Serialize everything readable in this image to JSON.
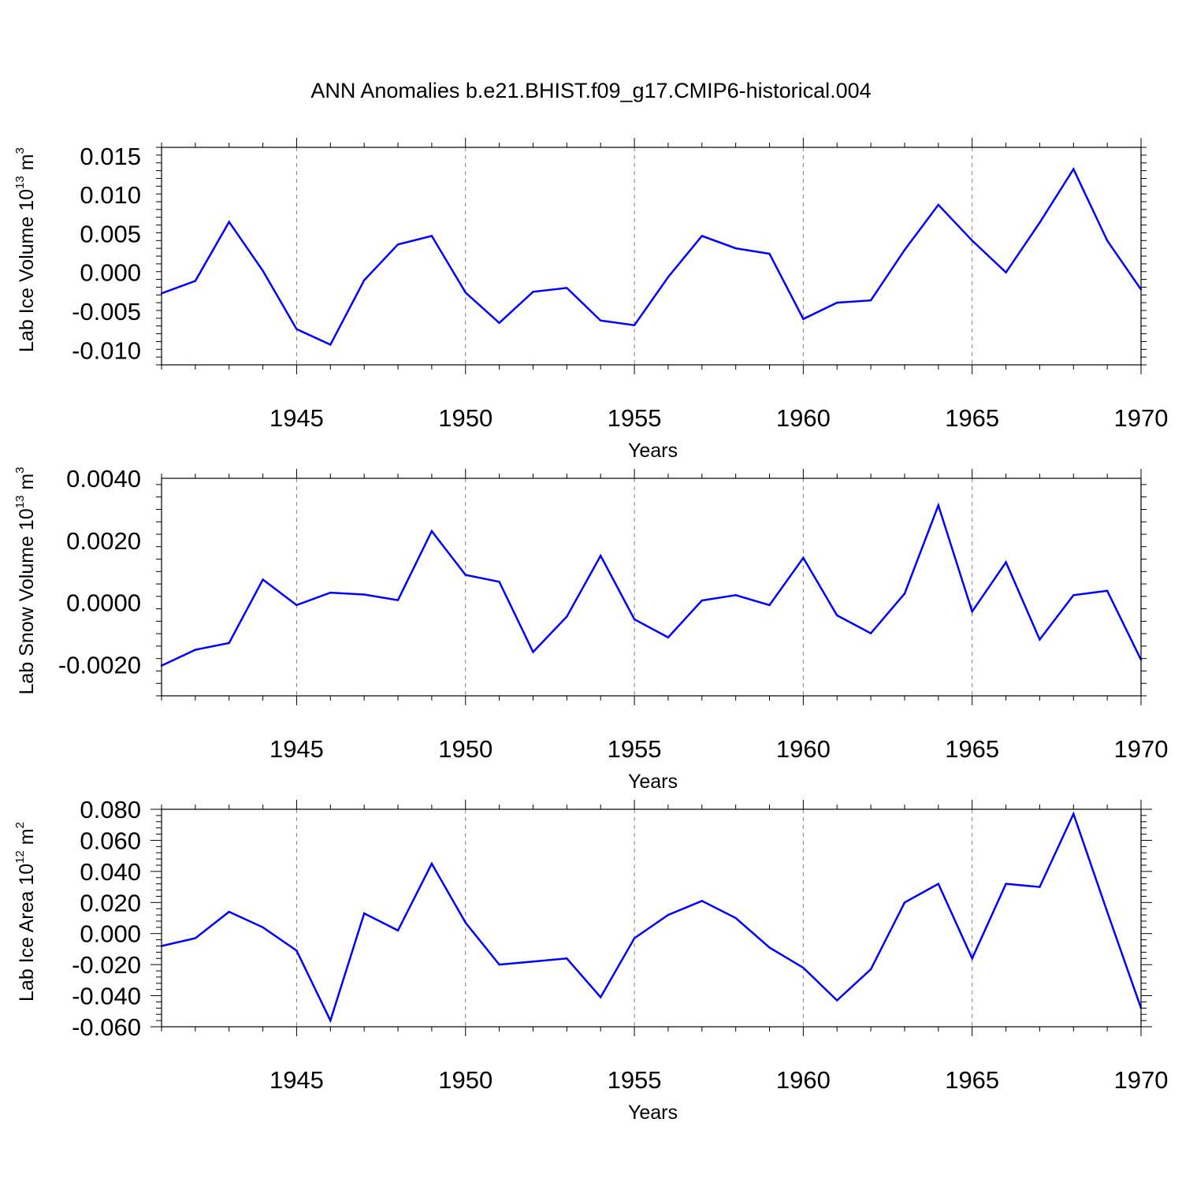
{
  "title": "ANN Anomalies b.e21.BHIST.f09_g17.CMIP6-historical.004",
  "colors": {
    "series": "#0000ff",
    "axis": "#000000",
    "grid": "#808080"
  },
  "chart_data": [
    {
      "type": "line",
      "ylabel_main": "Lab Ice Volume 10",
      "ylabel_exp": "13",
      "ylabel_unit": " m",
      "ylabel_unit_exp": "3",
      "xlabel": "Years",
      "xlim": [
        1941,
        1970
      ],
      "ylim": [
        -0.0119,
        0.0161
      ],
      "xticks": [
        "1945",
        "1950",
        "1955",
        "1960",
        "1965",
        "1970"
      ],
      "yticks": [
        "-0.010",
        "-0.005",
        "0.000",
        "0.005",
        "0.010",
        "0.015"
      ],
      "ytick_values": [
        -0.01,
        -0.005,
        0.0,
        0.005,
        0.01,
        0.015
      ],
      "grid": "vertical dashed at major x ticks",
      "x": [
        1941,
        1942,
        1943,
        1944,
        1945,
        1946,
        1947,
        1948,
        1949,
        1950,
        1951,
        1952,
        1953,
        1954,
        1955,
        1956,
        1957,
        1958,
        1959,
        1960,
        1961,
        1962,
        1963,
        1964,
        1965,
        1966,
        1967,
        1968,
        1969,
        1970
      ],
      "values": [
        -0.0027,
        -0.0011,
        0.0065,
        0.0002,
        -0.0073,
        -0.0093,
        -0.001,
        0.0036,
        0.0047,
        -0.0026,
        -0.0065,
        -0.0025,
        -0.002,
        -0.0062,
        -0.0068,
        -0.0006,
        0.0047,
        0.0031,
        0.0024,
        -0.006,
        -0.0039,
        -0.0036,
        0.0029,
        0.0087,
        0.0041,
        0.0,
        0.0064,
        0.0133,
        0.0041,
        -0.0022
      ]
    },
    {
      "type": "line",
      "ylabel_main": "Lab Snow Volume 10",
      "ylabel_exp": "13",
      "ylabel_unit": " m",
      "ylabel_unit_exp": "3",
      "xlabel": "Years",
      "xlim": [
        1941,
        1970
      ],
      "ylim": [
        -0.003,
        0.004
      ],
      "xticks": [
        "1945",
        "1950",
        "1955",
        "1960",
        "1965",
        "1970"
      ],
      "yticks": [
        "-0.0020",
        "0.0000",
        "0.0020",
        "0.0040"
      ],
      "ytick_values": [
        -0.002,
        0.0,
        0.002,
        0.004
      ],
      "grid": "vertical dashed at major x ticks",
      "x": [
        1941,
        1942,
        1943,
        1944,
        1945,
        1946,
        1947,
        1948,
        1949,
        1950,
        1951,
        1952,
        1953,
        1954,
        1955,
        1956,
        1957,
        1958,
        1959,
        1960,
        1961,
        1962,
        1963,
        1964,
        1965,
        1966,
        1967,
        1968,
        1969,
        1970
      ],
      "values": [
        -0.00203,
        -0.00152,
        -0.0013,
        0.00074,
        -8e-05,
        0.00032,
        0.00026,
        8e-05,
        0.0023,
        0.00089,
        0.00067,
        -0.00159,
        -0.00045,
        0.00151,
        -0.00054,
        -0.00112,
        7e-05,
        0.00024,
        -8e-05,
        0.00144,
        -0.00041,
        -0.00099,
        0.00029,
        0.00313,
        -0.00029,
        0.0013,
        -0.00119,
        0.00024,
        0.00038,
        -0.00184
      ]
    },
    {
      "type": "line",
      "ylabel_main": "Lab Ice Area 10",
      "ylabel_exp": "12",
      "ylabel_unit": " m",
      "ylabel_unit_exp": "2",
      "xlabel": "Years",
      "xlim": [
        1941,
        1970
      ],
      "ylim": [
        -0.06,
        0.08
      ],
      "xticks": [
        "1945",
        "1950",
        "1955",
        "1960",
        "1965",
        "1970"
      ],
      "yticks": [
        "-0.060",
        "-0.040",
        "-0.020",
        "0.000",
        "0.020",
        "0.040",
        "0.060",
        "0.080"
      ],
      "ytick_values": [
        -0.06,
        -0.04,
        -0.02,
        0.0,
        0.02,
        0.04,
        0.06,
        0.08
      ],
      "grid": "vertical dashed at major x ticks",
      "x": [
        1941,
        1942,
        1943,
        1944,
        1945,
        1946,
        1947,
        1948,
        1949,
        1950,
        1951,
        1952,
        1953,
        1954,
        1955,
        1956,
        1957,
        1958,
        1959,
        1960,
        1961,
        1962,
        1963,
        1964,
        1965,
        1966,
        1967,
        1968,
        1969,
        1970
      ],
      "values": [
        -0.008,
        -0.003,
        0.014,
        0.004,
        -0.011,
        -0.056,
        0.013,
        0.002,
        0.045,
        0.007,
        -0.02,
        -0.018,
        -0.016,
        -0.041,
        -0.003,
        0.012,
        0.021,
        0.01,
        -0.009,
        -0.022,
        -0.043,
        -0.023,
        0.02,
        0.032,
        -0.016,
        0.032,
        0.03,
        0.077,
        0.014,
        -0.048
      ]
    }
  ]
}
